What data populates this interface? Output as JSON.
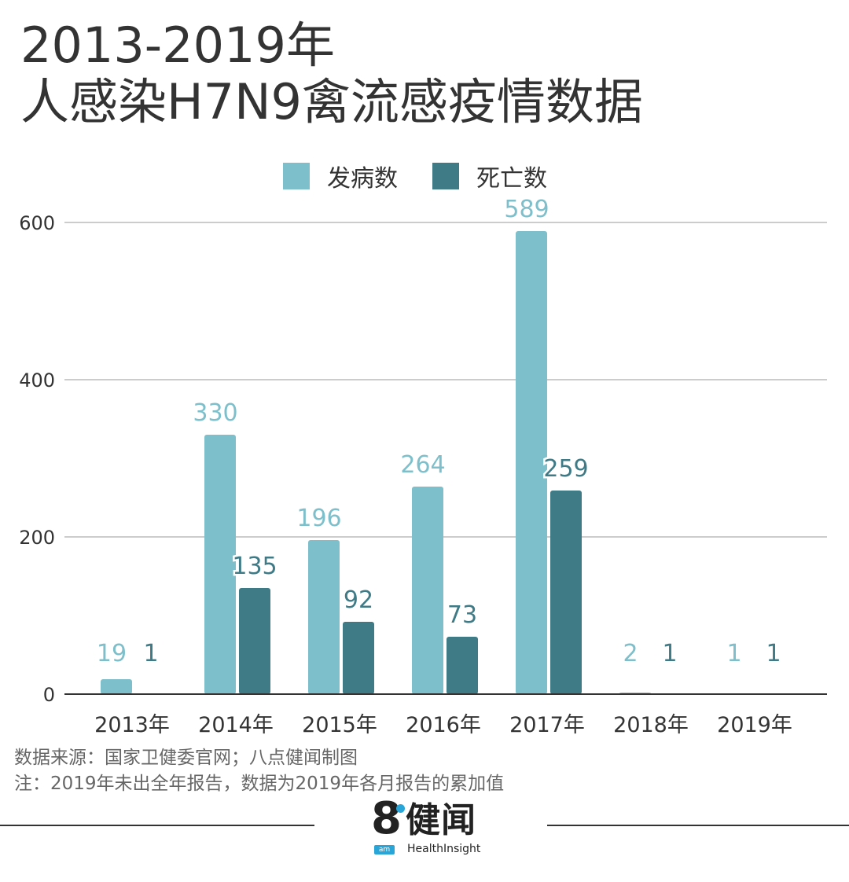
{
  "title_line1": "2013-2019年",
  "title_line2": "人感染H7N9禽流感疫情数据",
  "colors": {
    "cases": "#7dbfca",
    "deaths": "#3f7b87",
    "grid": "#cccccc",
    "axis": "#333333",
    "text": "#333333"
  },
  "chart_data": {
    "type": "bar",
    "title": "2013-2019年 人感染H7N9禽流感疫情数据",
    "categories": [
      "2013年",
      "2014年",
      "2015年",
      "2016年",
      "2017年",
      "2018年",
      "2019年"
    ],
    "series": [
      {
        "name": "发病数",
        "values": [
          19,
          330,
          196,
          264,
          589,
          2,
          1
        ]
      },
      {
        "name": "死亡数",
        "values": [
          1,
          135,
          92,
          73,
          259,
          1,
          1
        ]
      }
    ],
    "y_ticks": [
      "0",
      "200",
      "400",
      "600"
    ],
    "ylim": [
      0,
      600
    ],
    "grid": true,
    "legend": "top-center",
    "xlabel": "",
    "ylabel": ""
  },
  "notes": {
    "source": "数据来源：国家卫健委官网；八点健闻制图",
    "note": "注：2019年未出全年报告，数据为2019年各月报告的累加值"
  },
  "logo": {
    "mark": "8",
    "cn": "健闻",
    "badge": "am",
    "en": "HealthInsight"
  }
}
